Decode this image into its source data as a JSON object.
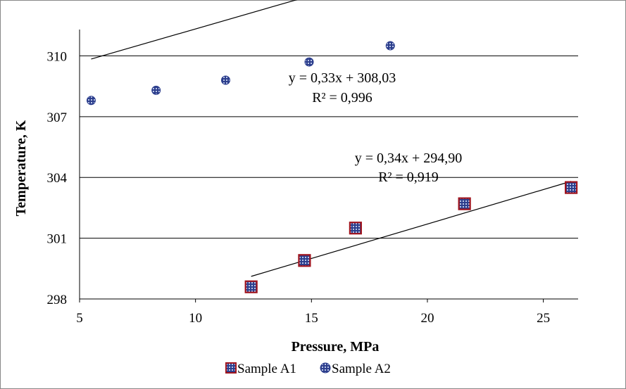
{
  "chart_data": {
    "type": "scatter",
    "xlabel": "Pressure, MPa",
    "ylabel": "Temperature, K",
    "xlim": [
      5,
      26.5
    ],
    "ylim": [
      298,
      311.3
    ],
    "x_ticks": [
      5,
      10,
      15,
      20,
      25
    ],
    "y_ticks": [
      298,
      301,
      304,
      307,
      310
    ],
    "grid": "horizontal",
    "legend_position": "bottom",
    "series": [
      {
        "name": "Sample A1",
        "marker": "square",
        "x": [
          12.4,
          14.7,
          16.9,
          21.6,
          26.2
        ],
        "y": [
          298.6,
          299.9,
          301.5,
          302.7,
          303.5
        ],
        "trendline": {
          "x_range": [
            12.4,
            26.2
          ],
          "slope": 0.34,
          "intercept": 294.9
        }
      },
      {
        "name": "Sample A2",
        "marker": "circle",
        "x": [
          5.5,
          8.3,
          11.3,
          14.9,
          18.4
        ],
        "y": [
          307.8,
          308.3,
          308.8,
          309.7,
          310.5
        ],
        "trendline": {
          "x_range": [
            5.5,
            18.4
          ],
          "slope": 0.33,
          "intercept": 308.03
        }
      }
    ],
    "annotations": [
      {
        "id": "a2_eq",
        "text": "y = 0,33x + 308,03"
      },
      {
        "id": "a2_r2",
        "text": "R² = 0,996"
      },
      {
        "id": "a1_eq",
        "text": "y = 0,34x + 294,90"
      },
      {
        "id": "a1_r2",
        "text": "R² = 0,919"
      }
    ],
    "colors": {
      "frame": "#888888",
      "grid": "#000000",
      "a1_border": "#a0141e",
      "a1_fill": "#2b3d8c",
      "a2_fill": "#2b3d8c",
      "trendline": "#000000"
    }
  }
}
